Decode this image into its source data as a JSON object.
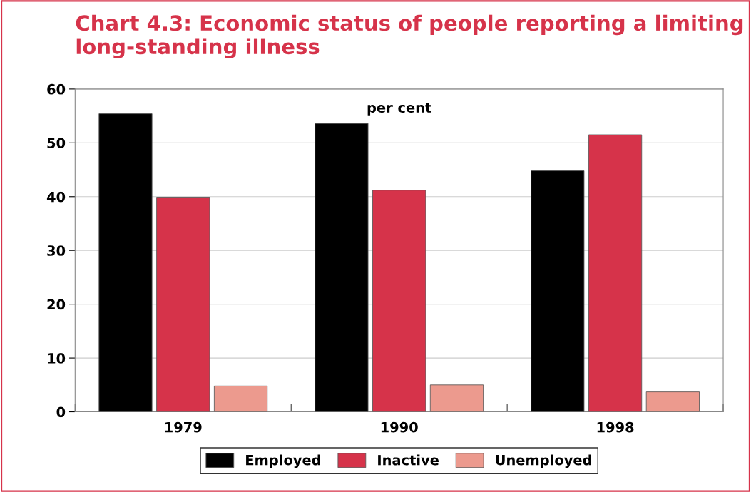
{
  "chart_data": {
    "type": "bar",
    "title": "Chart 4.3: Economic status of people reporting a limiting long-standing illness",
    "categories": [
      "1979",
      "1990",
      "1998"
    ],
    "series": [
      {
        "name": "Employed",
        "color": "#000000",
        "values": [
          55.4,
          53.6,
          44.8
        ]
      },
      {
        "name": "Inactive",
        "color": "#d6334a",
        "values": [
          39.9,
          41.2,
          51.5
        ]
      },
      {
        "name": "Unemployed",
        "color": "#ec9a8e",
        "values": [
          4.8,
          5.0,
          3.7
        ]
      }
    ],
    "ylim": [
      0,
      60
    ],
    "yticks": [
      0,
      10,
      20,
      30,
      40,
      50,
      60
    ],
    "grid": "y",
    "legend": "bottom",
    "annotations": [
      "per cent"
    ]
  }
}
